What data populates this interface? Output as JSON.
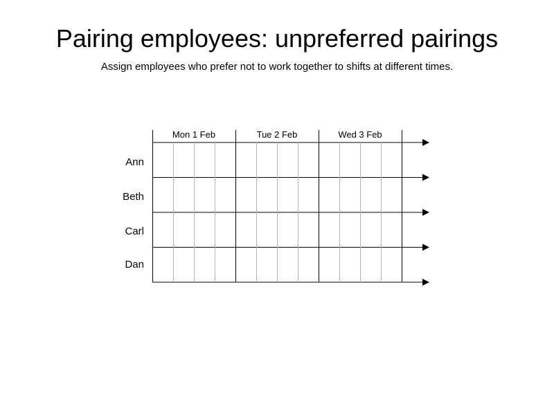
{
  "title": "Pairing employees: unpreferred pairings",
  "subtitle": "Assign employees who prefer not to work together to shifts at different times.",
  "schedule": {
    "days": [
      "Mon 1 Feb",
      "Tue 2 Feb",
      "Wed 3 Feb"
    ],
    "employees": [
      "Ann",
      "Beth",
      "Carl",
      "Dan"
    ],
    "slots_per_day": 4
  }
}
